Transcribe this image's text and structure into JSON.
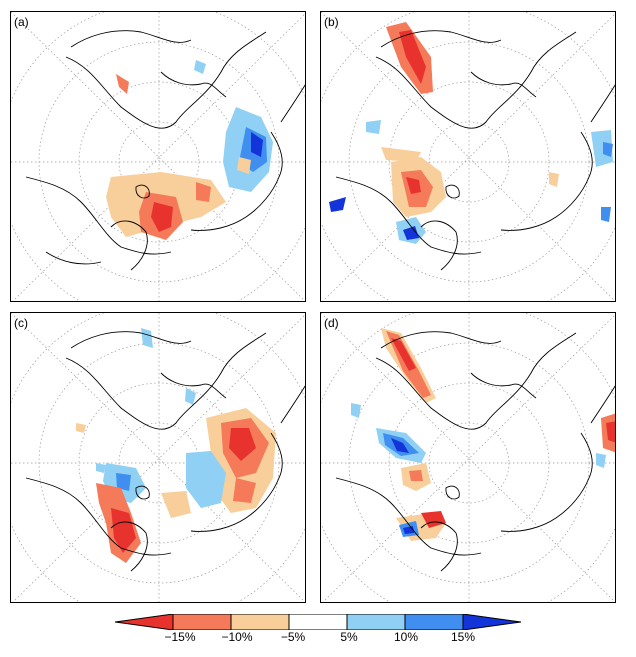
{
  "panels": [
    {
      "id": "a",
      "label": "(a)"
    },
    {
      "id": "b",
      "label": "(b)"
    },
    {
      "id": "c",
      "label": "(c)"
    },
    {
      "id": "d",
      "label": "(d)"
    }
  ],
  "colorbar": {
    "labels": [
      "−15%",
      "−10%",
      "−5%",
      "5%",
      "10%",
      "15%"
    ],
    "colors": [
      "#e8322e",
      "#f47a5a",
      "#f8cf9a",
      "#ffffff",
      "#8fd0f4",
      "#3f8ef0",
      "#1234d8"
    ]
  },
  "colors": {
    "red": "#e8322e",
    "salmon": "#f47a5a",
    "tan": "#f8cf9a",
    "lightblue": "#8fd0f4",
    "blue": "#3f8ef0",
    "darkblue": "#1234d8"
  }
}
